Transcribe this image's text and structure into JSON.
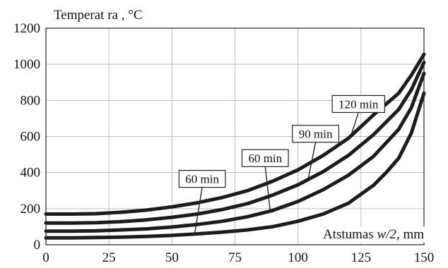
{
  "chart_data": {
    "type": "line",
    "ylabel": "Temperat ra , °C",
    "xlabel_prefix": "Atstumas ",
    "xlabel_var": "w/2",
    "xlabel_suffix": ", mm",
    "xlim": [
      0,
      150
    ],
    "ylim": [
      0,
      1200
    ],
    "x_ticks": [
      "0",
      "25",
      "50",
      "75",
      "100",
      "125",
      "150"
    ],
    "y_ticks": [
      "0",
      "200",
      "400",
      "600",
      "800",
      "1000",
      "1200"
    ],
    "grid": true,
    "series": [
      {
        "name": "120 min",
        "x": [
          0,
          10,
          20,
          30,
          40,
          50,
          60,
          70,
          80,
          90,
          100,
          110,
          120,
          130,
          140,
          145,
          150
        ],
        "values": [
          170,
          170,
          172,
          180,
          192,
          210,
          232,
          262,
          300,
          352,
          415,
          495,
          590,
          720,
          840,
          940,
          1055
        ]
      },
      {
        "name": "90 min",
        "x": [
          0,
          10,
          20,
          30,
          40,
          50,
          60,
          70,
          80,
          90,
          100,
          110,
          120,
          130,
          140,
          145,
          150
        ],
        "values": [
          120,
          120,
          122,
          128,
          138,
          152,
          170,
          195,
          228,
          275,
          332,
          405,
          495,
          610,
          750,
          860,
          1010
        ]
      },
      {
        "name": "60 min",
        "x": [
          0,
          10,
          20,
          30,
          40,
          50,
          60,
          70,
          80,
          90,
          100,
          110,
          120,
          130,
          140,
          145,
          150
        ],
        "values": [
          75,
          75,
          77,
          82,
          88,
          98,
          112,
          130,
          155,
          190,
          240,
          305,
          385,
          490,
          640,
          760,
          950
        ]
      },
      {
        "name": "60 min",
        "x": [
          0,
          10,
          20,
          30,
          40,
          50,
          60,
          70,
          80,
          90,
          100,
          110,
          120,
          130,
          135,
          140,
          145,
          150
        ],
        "values": [
          38,
          38,
          40,
          42,
          46,
          52,
          60,
          70,
          82,
          100,
          130,
          170,
          230,
          330,
          400,
          480,
          620,
          840
        ]
      }
    ],
    "callouts": [
      {
        "label": "120 min",
        "series": 0,
        "at_x": 121,
        "box_x": 124,
        "box_y": 780
      },
      {
        "label": "90 min",
        "series": 1,
        "at_x": 104,
        "box_x": 107,
        "box_y": 615
      },
      {
        "label": "60 min",
        "series": 2,
        "at_x": 89,
        "box_x": 87,
        "box_y": 480
      },
      {
        "label": "60 min",
        "series": 3,
        "at_x": 59,
        "box_x": 62,
        "box_y": 365
      }
    ]
  }
}
